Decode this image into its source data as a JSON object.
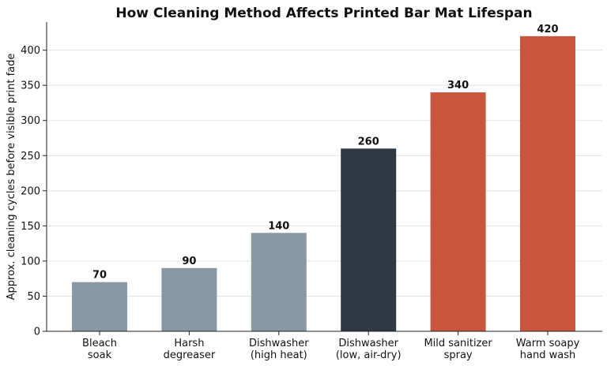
{
  "chart_data": {
    "type": "bar",
    "title": "How Cleaning Method Affects Printed Bar Mat Lifespan",
    "ylabel": "Approx. cleaning cycles before visible print fade",
    "categories": [
      "Bleach\nsoak",
      "Harsh\ndegreaser",
      "Dishwasher\n(high heat)",
      "Dishwasher\n(low, air-dry)",
      "Mild sanitizer\nspray",
      "Warm soapy\nhand wash"
    ],
    "values": [
      70,
      90,
      140,
      260,
      340,
      420
    ],
    "colors": [
      "#8898a5",
      "#8898a5",
      "#8898a5",
      "#2d3842",
      "#c8553d",
      "#c8553d"
    ],
    "ylim": [
      0,
      440
    ],
    "yticks": [
      0,
      50,
      100,
      150,
      200,
      250,
      300,
      350,
      400
    ],
    "grid": true
  }
}
